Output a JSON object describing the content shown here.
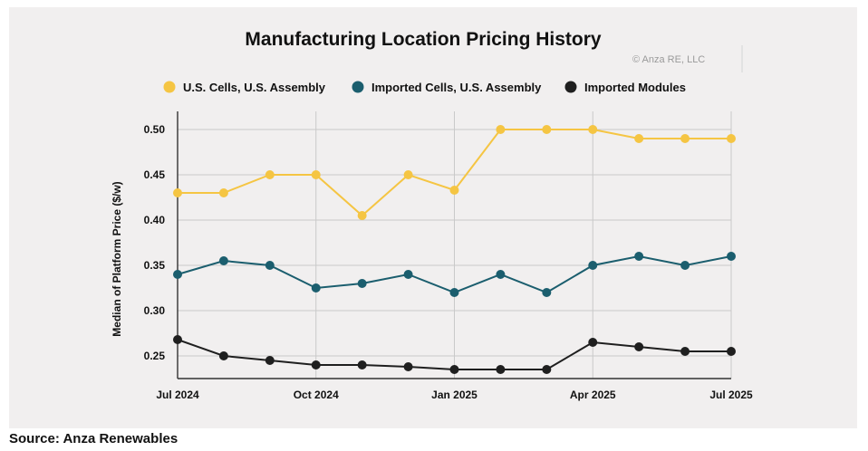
{
  "source": "Source: Anza Renewables",
  "chart_data": {
    "type": "line",
    "title": "Manufacturing Location Pricing History",
    "copyright": "© Anza RE, LLC",
    "xlabel": "",
    "ylabel": "Median of Platform Price ($/w)",
    "x": [
      "2024-07",
      "2024-08",
      "2024-09",
      "2024-10",
      "2024-11",
      "2024-12",
      "2025-01",
      "2025-02",
      "2025-03",
      "2025-04",
      "2025-05",
      "2025-06",
      "2025-07"
    ],
    "x_ticks": [
      {
        "label": "Jul 2024",
        "index": 0
      },
      {
        "label": "Oct 2024",
        "index": 3
      },
      {
        "label": "Jan 2025",
        "index": 6
      },
      {
        "label": "Apr 2025",
        "index": 9
      },
      {
        "label": "Jul 2025",
        "index": 12
      }
    ],
    "y_ticks": [
      "0.25",
      "0.30",
      "0.35",
      "0.40",
      "0.45",
      "0.50"
    ],
    "ylim": [
      0.225,
      0.52
    ],
    "grid": true,
    "legend_position": "top",
    "series": [
      {
        "name": "U.S. Cells, U.S. Assembly",
        "color": "#f5c543",
        "values": [
          0.43,
          0.43,
          0.45,
          0.45,
          0.405,
          0.45,
          0.433,
          0.5,
          0.5,
          0.5,
          0.49,
          0.49,
          0.49
        ]
      },
      {
        "name": "Imported Cells, U.S. Assembly",
        "color": "#1b5e6e",
        "values": [
          0.34,
          0.355,
          0.35,
          0.325,
          0.33,
          0.34,
          0.32,
          0.34,
          0.32,
          0.35,
          0.36,
          0.35,
          0.36
        ]
      },
      {
        "name": "Imported Modules",
        "color": "#1f1f1f",
        "values": [
          0.268,
          0.25,
          0.245,
          0.24,
          0.24,
          0.238,
          0.235,
          0.235,
          0.235,
          0.265,
          0.26,
          0.255,
          0.255
        ]
      }
    ]
  }
}
